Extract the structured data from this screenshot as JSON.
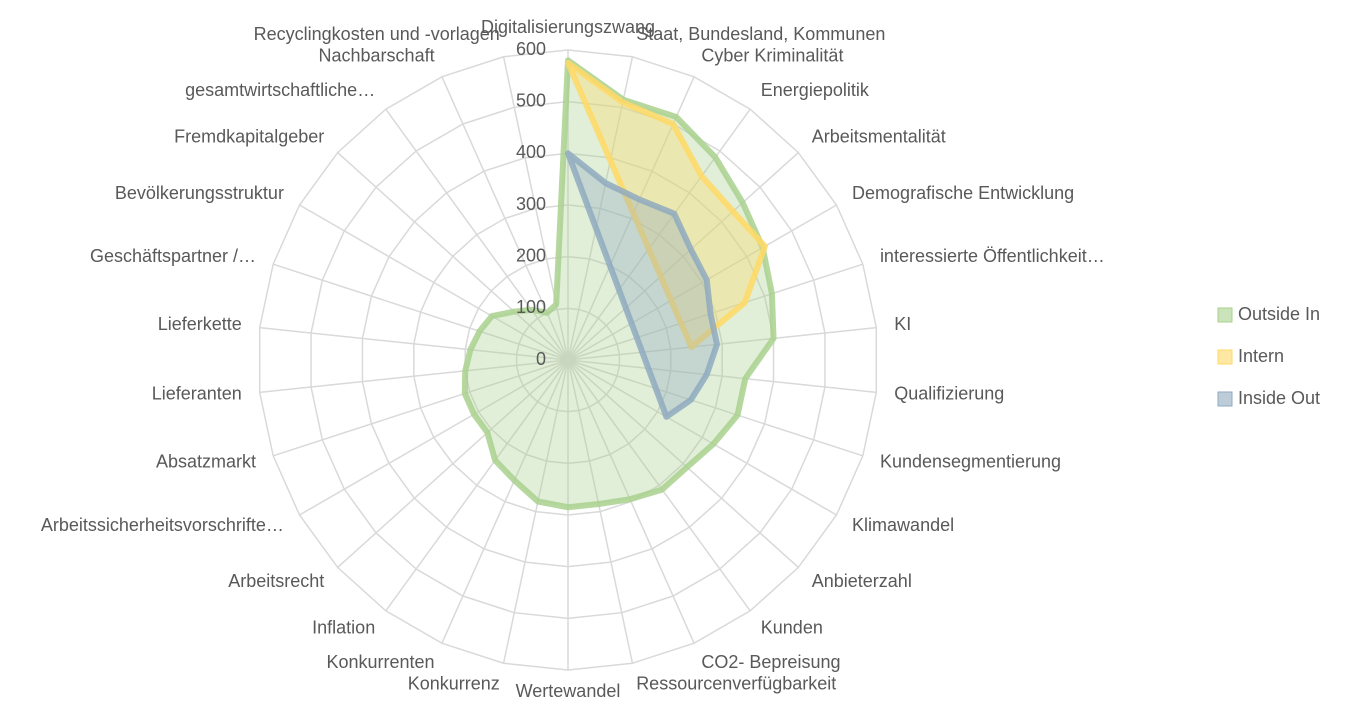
{
  "chart_data": {
    "type": "radar",
    "categories": [
      "Digitalisierungszwang",
      "Staat, Bundesland, Kommunen",
      "Cyber Kriminalität",
      "Energiepolitik",
      "Arbeitsmentalität",
      "Demografische Entwicklung",
      "interessierte Öffentlichkeit…",
      "KI",
      "Qualifizierung",
      "Kundensegmentierung",
      "Klimawandel",
      "Anbieterzahl",
      "Kunden",
      "CO2- Bepreisung",
      "Ressourcenverfügbarkeit",
      "Wertewandel",
      "Konkurrenz",
      "Konkurrenten",
      "Inflation",
      "Arbeitsrecht",
      "Arbeitssicherheitsvorschrifte…",
      "Absatzmarkt",
      "Lieferanten",
      "Lieferkette",
      "Geschäftspartner /…",
      "Bevölkerungsstruktur",
      "Fremdkapitalgeber",
      "gesamtwirtschaftliche…",
      "Nachbarschaft",
      "Recyclingkosten und -vorlagen"
    ],
    "series": [
      {
        "name": "Outside In",
        "color": "#a9d18e",
        "values": [
          580,
          515,
          515,
          485,
          455,
          435,
          415,
          400,
          345,
          345,
          325,
          310,
          310,
          295,
          285,
          285,
          280,
          255,
          240,
          210,
          210,
          210,
          200,
          190,
          180,
          170,
          140,
          120,
          100,
          110
        ]
      },
      {
        "name": "Intern",
        "color": "#ffd966",
        "values": [
          575,
          510,
          500,
          440,
          430,
          440,
          360,
          240,
          null,
          null,
          null,
          null,
          null,
          null,
          null,
          null,
          null,
          null,
          null,
          null,
          null,
          null,
          null,
          null,
          null,
          null,
          null,
          null,
          null,
          null
        ]
      },
      {
        "name": "Inside Out",
        "color": "#8faabf",
        "values": [
          400,
          350,
          340,
          350,
          320,
          310,
          290,
          290,
          270,
          250,
          220,
          null,
          null,
          null,
          null,
          null,
          null,
          null,
          null,
          null,
          null,
          null,
          null,
          null,
          null,
          null,
          null,
          null,
          null,
          null
        ]
      }
    ],
    "ylim": [
      0,
      600
    ],
    "yticks": [
      0,
      100,
      200,
      300,
      400,
      500,
      600
    ],
    "grid": true,
    "legend": "right"
  }
}
